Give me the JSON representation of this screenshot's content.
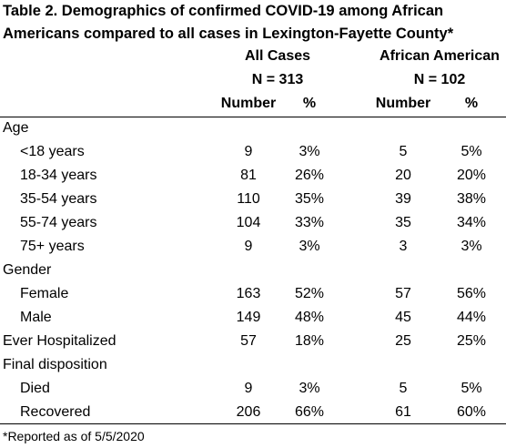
{
  "title_lines": [
    "Table 2. Demographics of confirmed COVID-19 among African",
    "Americans compared to all cases in Lexington-Fayette County*"
  ],
  "column_groups": [
    {
      "name": "All Cases",
      "n": "N = 313"
    },
    {
      "name": "African American",
      "n": "N = 102"
    }
  ],
  "subheaders": [
    "Number",
    "%",
    "Number",
    "%"
  ],
  "sections": [
    {
      "label": "Age",
      "rows": [
        {
          "label": "<18 years",
          "cells": [
            "9",
            "3%",
            "5",
            "5%"
          ]
        },
        {
          "label": "18-34 years",
          "cells": [
            "81",
            "26%",
            "20",
            "20%"
          ]
        },
        {
          "label": "35-54 years",
          "cells": [
            "110",
            "35%",
            "39",
            "38%"
          ]
        },
        {
          "label": "55-74 years",
          "cells": [
            "104",
            "33%",
            "35",
            "34%"
          ]
        },
        {
          "label": "75+ years",
          "cells": [
            "9",
            "3%",
            "3",
            "3%"
          ]
        }
      ]
    },
    {
      "label": "Gender",
      "rows": [
        {
          "label": "Female",
          "cells": [
            "163",
            "52%",
            "57",
            "56%"
          ]
        },
        {
          "label": "Male",
          "cells": [
            "149",
            "48%",
            "45",
            "44%"
          ]
        }
      ]
    },
    {
      "label": "Ever Hospitalized",
      "cells": [
        "57",
        "18%",
        "25",
        "25%"
      ]
    },
    {
      "label": "Final disposition",
      "rows": [
        {
          "label": "Died",
          "cells": [
            "9",
            "3%",
            "5",
            "5%"
          ]
        },
        {
          "label": "Recovered",
          "cells": [
            "206",
            "66%",
            "61",
            "60%"
          ]
        }
      ]
    }
  ],
  "footnote": "*Reported as of 5/5/2020"
}
